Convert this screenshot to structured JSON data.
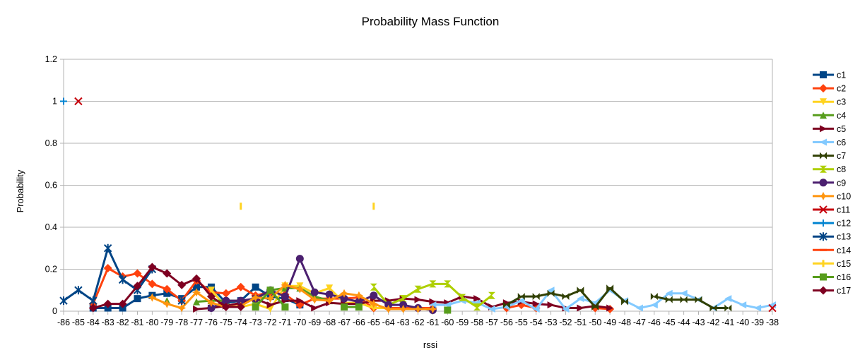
{
  "chart_data": {
    "type": "line",
    "title": "Probability Mass Function",
    "xlabel": "rssi",
    "ylabel": "Probability",
    "categories": [
      "-86",
      "-85",
      "-84",
      "-83",
      "-82",
      "-81",
      "-80",
      "-79",
      "-78",
      "-77",
      "-76",
      "-75",
      "-74",
      "-73",
      "-72",
      "-71",
      "-70",
      "-69",
      "-68",
      "-67",
      "-66",
      "-65",
      "-64",
      "-63",
      "-62",
      "-61",
      "-60",
      "-59",
      "-58",
      "-57",
      "-56",
      "-55",
      "-54",
      "-53",
      "-52",
      "-51",
      "-50",
      "-49",
      "-48",
      "-47",
      "-46",
      "-45",
      "-44",
      "-43",
      "-42",
      "-41",
      "-40",
      "-39",
      "-38"
    ],
    "y_ticks": [
      "0",
      "0.2",
      "0.4",
      "0.6",
      "0.8",
      "1",
      "1.2"
    ],
    "ylim": [
      0,
      1.2
    ],
    "grid": true,
    "legend_position": "right",
    "series": [
      {
        "name": "c1",
        "color": "#004586",
        "marker": "square",
        "values": [
          null,
          null,
          0.015,
          0.015,
          0.015,
          0.06,
          0.075,
          0.085,
          0.06,
          0.115,
          0.115,
          0.04,
          0.05,
          0.115,
          0.07,
          0.06,
          0.03,
          null,
          null,
          null,
          null,
          null,
          null,
          null,
          null,
          null,
          null,
          null,
          null,
          null,
          null,
          null,
          null,
          null,
          null,
          null,
          null,
          null,
          null,
          null,
          null,
          null,
          null,
          null,
          null,
          null,
          null,
          null,
          null
        ]
      },
      {
        "name": "c2",
        "color": "#ff420e",
        "marker": "diamond",
        "values": [
          null,
          null,
          0.035,
          0.205,
          0.165,
          0.18,
          0.13,
          0.105,
          0.05,
          0.145,
          0.09,
          0.085,
          0.115,
          0.075,
          0.09,
          0.08,
          0.03,
          0.06,
          0.06,
          0.06,
          0.065,
          0.015,
          0.015,
          0.015,
          0.015,
          0.015,
          null,
          null,
          null,
          null,
          0.015,
          0.03,
          0.015,
          null,
          null,
          null,
          0.015,
          0.01,
          null,
          null,
          null,
          null,
          null,
          null,
          null,
          null,
          null,
          null,
          null
        ]
      },
      {
        "name": "c3",
        "color": "#ffd320",
        "marker": "triangle-down",
        "values": [
          null,
          null,
          null,
          null,
          null,
          null,
          null,
          null,
          null,
          null,
          0.1,
          0.02,
          0.02,
          0.035,
          0.01,
          0.12,
          0.12,
          0.085,
          0.11,
          0.04,
          0.04,
          0.015,
          0.015,
          null,
          null,
          null,
          null,
          null,
          null,
          null,
          null,
          null,
          null,
          null,
          null,
          null,
          null,
          null,
          null,
          null,
          null,
          null,
          null,
          null,
          null,
          null,
          null,
          null,
          null
        ]
      },
      {
        "name": "c4",
        "color": "#579d1c",
        "marker": "triangle-up",
        "values": [
          null,
          null,
          null,
          null,
          null,
          null,
          null,
          0.05,
          null,
          0.045,
          0.05,
          0.05,
          0.05,
          0.055,
          0.1,
          0.11,
          0.11,
          0.07,
          0.05,
          null,
          null,
          null,
          null,
          null,
          null,
          null,
          null,
          null,
          null,
          null,
          null,
          null,
          null,
          null,
          null,
          null,
          null,
          null,
          null,
          null,
          null,
          null,
          null,
          null,
          null,
          null,
          null,
          null,
          null
        ]
      },
      {
        "name": "c5",
        "color": "#7e0021",
        "marker": "triangle-right",
        "values": [
          null,
          null,
          null,
          null,
          null,
          null,
          null,
          null,
          null,
          0.01,
          0.015,
          0.025,
          0.04,
          0.06,
          0.03,
          0.05,
          0.05,
          0.015,
          0.04,
          0.035,
          0.035,
          0.05,
          0.05,
          0.06,
          0.055,
          0.045,
          0.04,
          0.07,
          0.06,
          0.02,
          0.04,
          0.045,
          0.035,
          0.03,
          0.015,
          0.015,
          0.025,
          0.015,
          null,
          null,
          null,
          null,
          null,
          null,
          null,
          null,
          null,
          null,
          null
        ]
      },
      {
        "name": "c6",
        "color": "#83caff",
        "marker": "triangle-left",
        "values": [
          null,
          null,
          null,
          null,
          null,
          null,
          null,
          null,
          null,
          null,
          null,
          null,
          null,
          null,
          null,
          null,
          null,
          null,
          null,
          null,
          null,
          null,
          null,
          null,
          null,
          0.03,
          0.03,
          0.05,
          0.04,
          0.01,
          0.02,
          0.05,
          0.01,
          0.1,
          0.01,
          0.06,
          0.04,
          0.1,
          0.05,
          0.015,
          0.03,
          0.085,
          0.085,
          0.055,
          0.015,
          0.06,
          0.03,
          0.015,
          0.03
        ]
      },
      {
        "name": "c7",
        "color": "#314004",
        "marker": "bowtie",
        "values": [
          null,
          null,
          null,
          null,
          null,
          null,
          null,
          null,
          null,
          null,
          null,
          null,
          null,
          null,
          null,
          null,
          null,
          null,
          null,
          null,
          null,
          null,
          null,
          null,
          null,
          null,
          null,
          null,
          null,
          null,
          0.03,
          0.07,
          0.07,
          0.085,
          0.07,
          0.1,
          0.02,
          0.11,
          0.045,
          null,
          0.07,
          0.055,
          0.055,
          0.055,
          0.015,
          0.015,
          null,
          null,
          null
        ]
      },
      {
        "name": "c8",
        "color": "#aecf00",
        "marker": "hourglass",
        "values": [
          null,
          null,
          null,
          null,
          null,
          null,
          null,
          null,
          null,
          null,
          null,
          null,
          null,
          null,
          null,
          null,
          null,
          null,
          null,
          null,
          null,
          0.115,
          0.03,
          0.06,
          0.105,
          0.13,
          0.13,
          0.065,
          0.02,
          0.075,
          null,
          null,
          null,
          null,
          null,
          null,
          null,
          null,
          null,
          null,
          null,
          null,
          null,
          null,
          null,
          null,
          null,
          null,
          null
        ]
      },
      {
        "name": "c9",
        "color": "#4b1f6f",
        "marker": "circle",
        "values": [
          null,
          null,
          null,
          null,
          null,
          null,
          null,
          null,
          null,
          null,
          0.015,
          0.05,
          0.05,
          0.06,
          0.1,
          0.07,
          0.25,
          0.09,
          0.08,
          0.06,
          0.045,
          0.075,
          0.03,
          0.03,
          0.015,
          0.005,
          null,
          null,
          null,
          null,
          null,
          null,
          null,
          null,
          null,
          null,
          null,
          null,
          null,
          null,
          null,
          null,
          null,
          null,
          null,
          null,
          null,
          null,
          null
        ]
      },
      {
        "name": "c10",
        "color": "#ff950e",
        "marker": "star4",
        "values": [
          null,
          null,
          null,
          null,
          null,
          null,
          0.065,
          0.035,
          0.015,
          0.09,
          0.04,
          0.02,
          0.025,
          0.065,
          0.06,
          0.125,
          0.105,
          0.055,
          0.05,
          0.085,
          0.075,
          0.035,
          0.01,
          0.01,
          0.01,
          0.01,
          null,
          null,
          null,
          null,
          null,
          null,
          null,
          null,
          null,
          null,
          null,
          null,
          null,
          null,
          null,
          null,
          null,
          null,
          null,
          null,
          null,
          null,
          null
        ]
      },
      {
        "name": "c11",
        "color": "#c5000b",
        "marker": "x",
        "values": [
          null,
          1,
          null,
          null,
          null,
          null,
          null,
          null,
          null,
          null,
          null,
          null,
          null,
          null,
          null,
          null,
          null,
          null,
          null,
          null,
          null,
          null,
          null,
          null,
          null,
          null,
          null,
          null,
          null,
          null,
          null,
          null,
          null,
          null,
          null,
          null,
          null,
          null,
          null,
          null,
          null,
          null,
          null,
          null,
          null,
          null,
          null,
          null,
          0.015
        ]
      },
      {
        "name": "c12",
        "color": "#0084d1",
        "marker": "plus",
        "values": [
          1,
          null,
          null,
          null,
          null,
          null,
          null,
          null,
          null,
          null,
          null,
          null,
          null,
          null,
          null,
          null,
          null,
          null,
          null,
          null,
          null,
          null,
          null,
          null,
          null,
          null,
          null,
          null,
          null,
          null,
          null,
          null,
          null,
          null,
          null,
          null,
          null,
          null,
          null,
          null,
          null,
          null,
          null,
          null,
          null,
          null,
          null,
          null,
          null
        ]
      },
      {
        "name": "c13",
        "color": "#004586",
        "marker": "asterisk",
        "values": [
          0.05,
          0.1,
          0.05,
          0.3,
          0.15,
          0.1,
          0.2,
          null,
          0.05,
          null,
          null,
          null,
          null,
          null,
          null,
          null,
          null,
          null,
          null,
          null,
          null,
          null,
          null,
          null,
          null,
          null,
          null,
          null,
          null,
          null,
          null,
          null,
          null,
          null,
          null,
          null,
          null,
          null,
          null,
          null,
          null,
          null,
          null,
          null,
          null,
          null,
          null,
          null,
          null
        ]
      },
      {
        "name": "c14",
        "color": "#ff420e",
        "marker": "dash",
        "values": [
          null,
          null,
          null,
          null,
          null,
          null,
          null,
          null,
          null,
          null,
          null,
          null,
          null,
          null,
          null,
          null,
          null,
          null,
          null,
          null,
          null,
          null,
          null,
          null,
          null,
          null,
          null,
          null,
          null,
          null,
          null,
          null,
          null,
          null,
          null,
          null,
          null,
          null,
          null,
          null,
          null,
          null,
          null,
          null,
          null,
          null,
          null,
          null,
          null
        ]
      },
      {
        "name": "c15",
        "color": "#ffd320",
        "marker": "vbar",
        "values": [
          null,
          null,
          null,
          null,
          null,
          null,
          null,
          null,
          null,
          null,
          null,
          null,
          0.5,
          null,
          null,
          null,
          null,
          null,
          null,
          null,
          null,
          0.5,
          null,
          null,
          null,
          null,
          null,
          null,
          null,
          null,
          null,
          null,
          null,
          null,
          null,
          null,
          null,
          null,
          null,
          null,
          null,
          null,
          null,
          null,
          null,
          null,
          null,
          null,
          null
        ]
      },
      {
        "name": "c16",
        "color": "#579d1c",
        "marker": "square",
        "values": [
          null,
          null,
          null,
          null,
          null,
          null,
          null,
          null,
          null,
          null,
          null,
          null,
          null,
          0.02,
          0.1,
          0.02,
          null,
          null,
          null,
          0.02,
          0.02,
          null,
          null,
          null,
          null,
          null,
          0.005,
          null,
          null,
          null,
          null,
          null,
          null,
          null,
          null,
          null,
          null,
          null,
          null,
          null,
          null,
          null,
          null,
          null,
          null,
          null,
          null,
          null,
          null
        ]
      },
      {
        "name": "c17",
        "color": "#7e0021",
        "marker": "diamond",
        "values": [
          null,
          null,
          0.015,
          0.035,
          0.035,
          0.12,
          0.21,
          0.18,
          0.125,
          0.155,
          0.07,
          0.02,
          0.02,
          null,
          null,
          null,
          null,
          null,
          null,
          null,
          null,
          null,
          null,
          null,
          null,
          null,
          null,
          null,
          null,
          null,
          null,
          null,
          null,
          null,
          null,
          null,
          null,
          null,
          null,
          null,
          null,
          null,
          null,
          null,
          null,
          null,
          null,
          null,
          null
        ]
      }
    ]
  }
}
